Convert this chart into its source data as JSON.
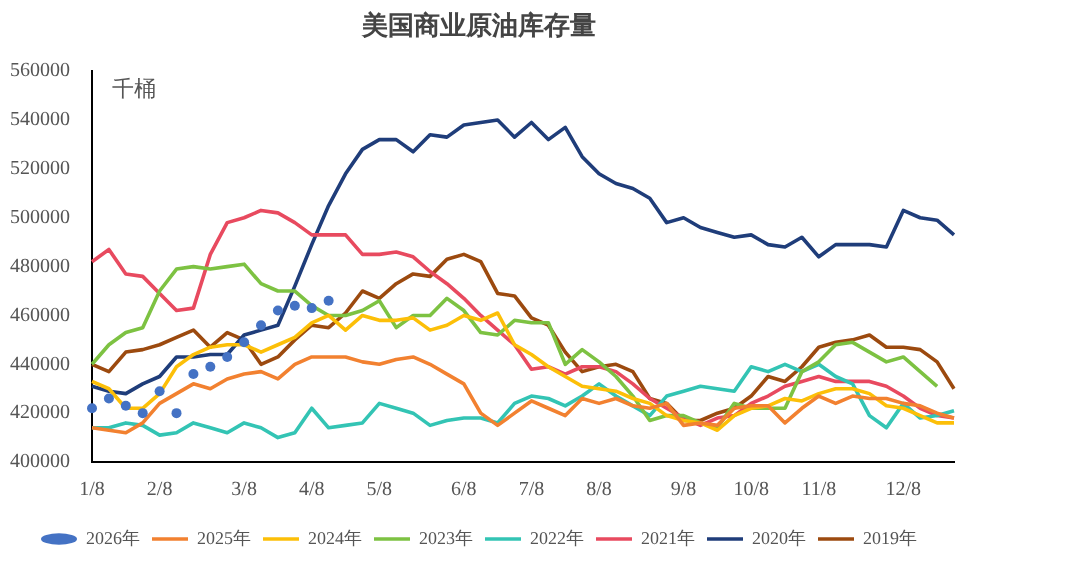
{
  "chart_data": {
    "type": "line",
    "title": "美国商业原油库存量",
    "ylabel": "千桶",
    "categories": [
      "1/8",
      null,
      null,
      null,
      "2/8",
      null,
      null,
      null,
      null,
      "3/8",
      null,
      null,
      null,
      "4/8",
      null,
      null,
      null,
      "5/8",
      null,
      null,
      null,
      null,
      "6/8",
      null,
      null,
      null,
      "7/8",
      null,
      null,
      null,
      "8/8",
      null,
      null,
      null,
      null,
      "9/8",
      null,
      null,
      null,
      "10/8",
      null,
      null,
      null,
      "11/8",
      null,
      null,
      null,
      null,
      "12/8",
      null,
      null,
      null
    ],
    "ylim": [
      400000,
      560000
    ],
    "yticks": [
      400000,
      420000,
      440000,
      460000,
      480000,
      500000,
      520000,
      540000,
      560000
    ],
    "grid": false,
    "legend": "bottom",
    "marker": "none",
    "line_style": "solid",
    "series": [
      {
        "name": "2025年",
        "color": "#f28130",
        "values": [
          414000,
          413000,
          412000,
          416000,
          424000,
          428000,
          432000,
          430000,
          434000,
          436000,
          437000,
          434000,
          440000,
          443000,
          443000,
          443000,
          441000,
          440000,
          442000,
          443000,
          440000,
          436000,
          432000,
          420000,
          415000,
          420000,
          425000,
          422000,
          419000,
          426000,
          424000,
          426000,
          423000,
          422000,
          424000,
          415000,
          416000,
          415000,
          422000,
          423000,
          423000,
          416000,
          422000,
          427000,
          424000,
          427000,
          426000,
          426000,
          424000,
          423000,
          420000,
          418000
        ]
      },
      {
        "name": "2024年",
        "color": "#fcbf08",
        "values": [
          433000,
          430000,
          422000,
          422000,
          428000,
          439000,
          444000,
          447000,
          448000,
          448000,
          445000,
          448000,
          451000,
          457000,
          460000,
          454000,
          460000,
          458000,
          458000,
          459000,
          454000,
          456000,
          460000,
          458000,
          461000,
          448000,
          444000,
          439000,
          435000,
          431000,
          430000,
          429000,
          426000,
          424000,
          419000,
          417000,
          416000,
          413000,
          419000,
          422000,
          423000,
          426000,
          425000,
          428000,
          430000,
          430000,
          428000,
          423000,
          422000,
          419000,
          416000,
          416000
        ]
      },
      {
        "name": "2023年",
        "color": "#7dc242",
        "values": [
          440000,
          448000,
          453000,
          455000,
          470000,
          479000,
          480000,
          479000,
          480000,
          481000,
          473000,
          470000,
          470000,
          464000,
          460000,
          460000,
          462000,
          466000,
          455000,
          460000,
          460000,
          467000,
          462000,
          453000,
          452000,
          458000,
          457000,
          457000,
          440000,
          446000,
          441000,
          435000,
          427000,
          417000,
          419000,
          419000,
          416000,
          414000,
          424000,
          422000,
          422000,
          422000,
          437000,
          441000,
          448000,
          449000,
          445000,
          441000,
          443000,
          437000,
          431000,
          null
        ]
      },
      {
        "name": "2022年",
        "color": "#33c4b4",
        "values": [
          414000,
          414000,
          416000,
          415000,
          411000,
          412000,
          416000,
          414000,
          412000,
          416000,
          414000,
          410000,
          412000,
          422000,
          414000,
          415000,
          416000,
          424000,
          422000,
          420000,
          415000,
          417000,
          418000,
          418000,
          416000,
          424000,
          427000,
          426000,
          423000,
          427000,
          432000,
          427000,
          423000,
          419000,
          427000,
          429000,
          431000,
          430000,
          429000,
          439000,
          437000,
          440000,
          437000,
          440000,
          435000,
          432000,
          419000,
          414000,
          424000,
          418000,
          419000,
          421000
        ]
      },
      {
        "name": "2021年",
        "color": "#e84a5f",
        "values": [
          482000,
          487000,
          477000,
          476000,
          469000,
          462000,
          463000,
          485000,
          498000,
          500000,
          503000,
          502000,
          498000,
          493000,
          493000,
          493000,
          485000,
          485000,
          486000,
          484000,
          478000,
          473000,
          467000,
          460000,
          454000,
          448000,
          438000,
          439000,
          436000,
          439000,
          439000,
          437000,
          432000,
          426000,
          422000,
          418000,
          415000,
          418000,
          419000,
          424000,
          427000,
          431000,
          433000,
          435000,
          433000,
          433000,
          433000,
          431000,
          427000,
          422000,
          419000,
          418000
        ]
      },
      {
        "name": "2020年",
        "color": "#1f3d7a",
        "values": [
          431000,
          429000,
          428000,
          432000,
          435000,
          443000,
          443000,
          444000,
          444000,
          452000,
          454000,
          456000,
          472000,
          489000,
          505000,
          518000,
          528000,
          532000,
          532000,
          527000,
          534000,
          533000,
          538000,
          539000,
          540000,
          533000,
          539000,
          532000,
          537000,
          525000,
          518000,
          514000,
          512000,
          508000,
          498000,
          500000,
          496000,
          494000,
          492000,
          493000,
          489000,
          488000,
          492000,
          484000,
          489000,
          489000,
          489000,
          488000,
          503000,
          500000,
          499000,
          493000
        ]
      },
      {
        "name": "2019年",
        "color": "#9c4a0f",
        "values": [
          440000,
          437000,
          445000,
          446000,
          448000,
          451000,
          454000,
          447000,
          453000,
          450000,
          440000,
          443000,
          450000,
          456000,
          455000,
          461000,
          470000,
          467000,
          473000,
          477000,
          476000,
          483000,
          485000,
          482000,
          469000,
          468000,
          459000,
          456000,
          445000,
          437000,
          439000,
          440000,
          437000,
          426000,
          424000,
          417000,
          417000,
          420000,
          422000,
          427000,
          435000,
          433000,
          439000,
          447000,
          449000,
          450000,
          452000,
          447000,
          447000,
          446000,
          441000,
          430000
        ]
      },
      {
        "name": "2026年",
        "color": "#4472c4",
        "type": "scatter",
        "marker": "circle",
        "values": [
          422000,
          426000,
          423000,
          420000,
          429000,
          420000,
          436000,
          439000,
          443000,
          449000,
          456000,
          462000,
          464000,
          463000,
          466000,
          null,
          null,
          null,
          null,
          null,
          null,
          null,
          null,
          null,
          null,
          null,
          null,
          null,
          null,
          null,
          null,
          null,
          null,
          null,
          null,
          null,
          null,
          null,
          null,
          null,
          null,
          null,
          null,
          null,
          null,
          null,
          null,
          null,
          null,
          null,
          null,
          null
        ]
      }
    ]
  }
}
